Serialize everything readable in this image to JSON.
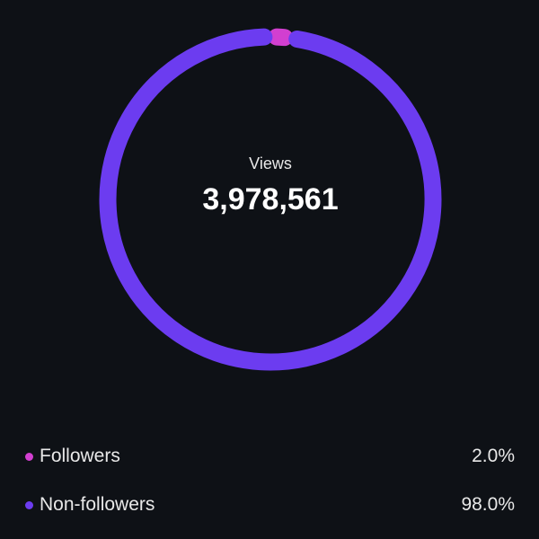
{
  "chart_data": {
    "type": "donut",
    "center_label": "Views",
    "center_value": "3,978,561",
    "series": [
      {
        "name": "Followers",
        "value": 2.0,
        "display": "2.0%",
        "color": "#d23fd0"
      },
      {
        "name": "Non-followers",
        "value": 98.0,
        "display": "98.0%",
        "color": "#6c3cf0"
      }
    ]
  },
  "background": "#0e1116"
}
